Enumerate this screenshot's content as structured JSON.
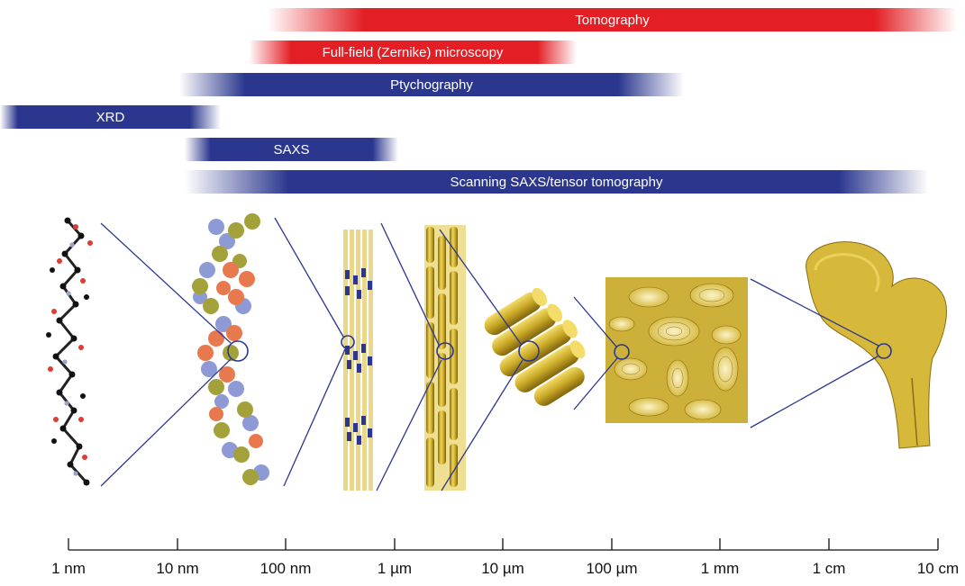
{
  "techniques": [
    {
      "id": "tomography",
      "label": "Tomography",
      "color": "#e31e24"
    },
    {
      "id": "fullfield",
      "label": "Full-field (Zernike) microscopy",
      "color": "#e31e24"
    },
    {
      "id": "ptychography",
      "label": "Ptychography",
      "color": "#2b378e"
    },
    {
      "id": "xrd",
      "label": "XRD",
      "color": "#2b378e"
    },
    {
      "id": "saxs",
      "label": "SAXS",
      "color": "#2b378e"
    },
    {
      "id": "scanning-saxs",
      "label": "Scanning SAXS/tensor tomography",
      "color": "#2b378e"
    }
  ],
  "scale": {
    "ticks": [
      "1 nm",
      "10 nm",
      "100 nm",
      "1 µm",
      "10 µm",
      "100 µm",
      "1 mm",
      "1 cm",
      "10 cm"
    ]
  },
  "colors": {
    "red": "#e31e24",
    "blue": "#2b378e",
    "gold": "#c9a826",
    "molecule_black": "#111111",
    "molecule_red": "#e03c31",
    "protein_orange": "#e8794f",
    "protein_olive": "#a3a23a",
    "protein_lavender": "#8e9ad6"
  }
}
